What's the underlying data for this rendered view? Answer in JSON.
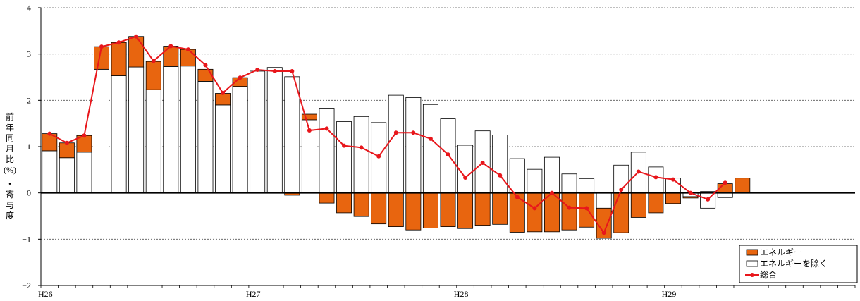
{
  "chart_data": {
    "type": "bar",
    "ylabel_chars": [
      "前",
      "年",
      "同",
      "月",
      "比",
      "(%)",
      "・",
      "寄",
      "与",
      "度"
    ],
    "ylim": [
      -2,
      4
    ],
    "yticks": [
      4,
      3,
      2,
      1,
      0,
      -1,
      -2
    ],
    "ytick_labels": [
      "4",
      "3",
      "2",
      "1",
      "0",
      "−1",
      "−2"
    ],
    "grid": true,
    "legend_position": "bottom-right",
    "x_labels": [
      {
        "label": "H26",
        "index": 0
      },
      {
        "label": "H27",
        "index": 12
      },
      {
        "label": "H28",
        "index": 24
      },
      {
        "label": "H29",
        "index": 36
      }
    ],
    "num_slots": 47,
    "series": [
      {
        "name": "エネルギー",
        "kind": "bar",
        "color": "#e8650f",
        "values": [
          0.37,
          0.32,
          0.36,
          0.49,
          0.72,
          0.66,
          0.61,
          0.44,
          0.36,
          0.26,
          0.25,
          0.19,
          0.0,
          0.0,
          -0.05,
          0.12,
          -0.22,
          -0.43,
          -0.51,
          -0.67,
          -0.73,
          -0.8,
          -0.76,
          -0.73,
          -0.77,
          -0.7,
          -0.68,
          -0.85,
          -0.84,
          -0.84,
          -0.8,
          -0.74,
          -0.65,
          -0.86,
          -0.53,
          -0.43,
          -0.23,
          -0.03,
          0.03,
          0.2,
          0.32
        ]
      },
      {
        "name": "エネルギーを除く",
        "kind": "bar",
        "color": "#ffffff",
        "values": [
          0.91,
          0.76,
          0.88,
          2.67,
          2.53,
          2.72,
          2.23,
          2.73,
          2.74,
          2.41,
          1.9,
          2.3,
          2.63,
          2.71,
          2.51,
          1.58,
          1.83,
          1.54,
          1.65,
          1.52,
          2.11,
          2.06,
          1.91,
          1.6,
          1.03,
          1.34,
          1.25,
          0.74,
          0.51,
          0.77,
          0.41,
          0.31,
          -0.33,
          0.6,
          0.88,
          0.56,
          0.32,
          -0.08,
          -0.33,
          -0.1,
          null
        ]
      },
      {
        "name": "総合",
        "kind": "line",
        "color": "#e8161b",
        "values": [
          1.28,
          1.08,
          1.24,
          3.16,
          3.25,
          3.38,
          2.85,
          3.17,
          3.1,
          2.76,
          2.16,
          2.49,
          2.66,
          2.63,
          2.63,
          1.35,
          1.39,
          1.02,
          0.98,
          0.79,
          1.3,
          1.3,
          1.17,
          0.83,
          0.33,
          0.65,
          0.38,
          -0.09,
          -0.33,
          0.0,
          -0.32,
          -0.33,
          -0.86,
          0.07,
          0.46,
          0.34,
          0.29,
          0.0,
          -0.14,
          0.22
        ]
      }
    ]
  }
}
